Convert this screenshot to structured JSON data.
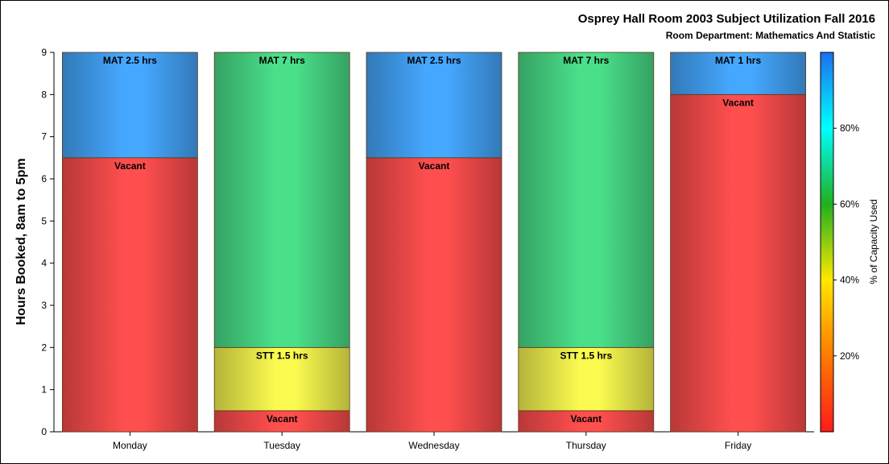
{
  "title": "Osprey Hall Room 2003 Subject Utilization Fall 2016",
  "subtitle": "Room Department:  Mathematics And Statistic",
  "chart_data": {
    "type": "bar",
    "stacked": true,
    "categories": [
      "Monday",
      "Tuesday",
      "Wednesday",
      "Thursday",
      "Friday"
    ],
    "ylabel": "Hours Booked, 8am to 5pm",
    "ylim": [
      0,
      9
    ],
    "yticks": [
      0,
      1,
      2,
      3,
      4,
      5,
      6,
      7,
      8,
      9
    ],
    "grid": false,
    "stacks": [
      {
        "category": "Monday",
        "segments": [
          {
            "label": "Vacant",
            "hours": 6.5,
            "pct_capacity": 5
          },
          {
            "label": "MAT 2.5 hrs",
            "hours": 2.5,
            "pct_capacity": 90
          }
        ]
      },
      {
        "category": "Tuesday",
        "segments": [
          {
            "label": "Vacant",
            "hours": 0.5,
            "pct_capacity": 5
          },
          {
            "label": "STT 1.5 hrs",
            "hours": 1.5,
            "pct_capacity": 50
          },
          {
            "label": "MAT 7 hrs",
            "hours": 7,
            "pct_capacity": 72
          }
        ]
      },
      {
        "category": "Wednesday",
        "segments": [
          {
            "label": "Vacant",
            "hours": 6.5,
            "pct_capacity": 5
          },
          {
            "label": "MAT 2.5 hrs",
            "hours": 2.5,
            "pct_capacity": 90
          }
        ]
      },
      {
        "category": "Thursday",
        "segments": [
          {
            "label": "Vacant",
            "hours": 0.5,
            "pct_capacity": 5
          },
          {
            "label": "STT 1.5 hrs",
            "hours": 1.5,
            "pct_capacity": 50
          },
          {
            "label": "MAT 7 hrs",
            "hours": 7,
            "pct_capacity": 72
          }
        ]
      },
      {
        "category": "Friday",
        "segments": [
          {
            "label": "Vacant",
            "hours": 8,
            "pct_capacity": 5
          },
          {
            "label": "MAT 1 hrs",
            "hours": 1,
            "pct_capacity": 90
          }
        ]
      }
    ],
    "colorbar": {
      "label": "% of Capacity Used",
      "ticks": [
        "20%",
        "40%",
        "60%",
        "80%"
      ],
      "tick_values": [
        20,
        40,
        60,
        80
      ],
      "range": [
        0,
        100
      ],
      "colors": [
        "#ff1a1a",
        "#ff7a00",
        "#ffe800",
        "#1fb01f",
        "#00ffff",
        "#1a6ff0"
      ]
    },
    "segment_colors": {
      "Vacant": "#ff4e4e",
      "STT": "#fafa50",
      "MAT_short": "#45a8ff",
      "MAT_long": "#4ae08a"
    }
  }
}
